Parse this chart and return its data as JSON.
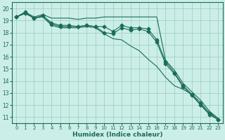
{
  "xlabel": "Humidex (Indice chaleur)",
  "background_color": "#cceee8",
  "grid_color": "#99ccbb",
  "line_color": "#1a6b5a",
  "xlim": [
    -0.5,
    23.5
  ],
  "ylim": [
    10.5,
    20.5
  ],
  "xticks": [
    0,
    1,
    2,
    3,
    4,
    5,
    6,
    7,
    8,
    9,
    10,
    11,
    12,
    13,
    14,
    15,
    16,
    17,
    18,
    19,
    20,
    21,
    22,
    23
  ],
  "yticks": [
    11,
    12,
    13,
    14,
    15,
    16,
    17,
    18,
    19,
    20
  ],
  "series": [
    {
      "y": [
        19.3,
        19.7,
        19.3,
        19.5,
        19.2,
        19.2,
        19.2,
        19.1,
        19.2,
        19.2,
        19.3,
        19.3,
        19.3,
        19.3,
        19.3,
        19.3,
        19.3,
        15.7,
        14.9,
        13.8,
        13.1,
        12.4,
        11.5,
        10.9
      ],
      "marker": false
    },
    {
      "y": [
        19.3,
        19.7,
        19.2,
        19.4,
        18.8,
        18.6,
        18.6,
        18.5,
        18.6,
        18.5,
        18.5,
        18.1,
        18.6,
        18.4,
        18.4,
        18.3,
        17.4,
        15.6,
        14.7,
        13.6,
        12.9,
        12.2,
        11.3,
        10.8
      ],
      "marker": true
    },
    {
      "y": [
        19.3,
        19.6,
        19.2,
        19.4,
        18.7,
        18.5,
        18.5,
        18.5,
        18.6,
        18.5,
        18.0,
        17.9,
        18.4,
        18.2,
        18.3,
        18.1,
        17.2,
        15.4,
        14.6,
        13.5,
        12.8,
        12.0,
        11.2,
        10.8
      ],
      "marker": true
    },
    {
      "y": [
        19.3,
        19.6,
        19.2,
        19.3,
        18.6,
        18.4,
        18.4,
        18.4,
        18.5,
        18.4,
        17.9,
        17.5,
        17.4,
        16.9,
        16.5,
        15.8,
        15.2,
        14.3,
        13.6,
        13.3,
        12.9,
        12.0,
        11.4,
        10.8
      ],
      "marker": false
    }
  ],
  "marker_style": "D",
  "markersize": 2.5,
  "linewidth": 0.8
}
